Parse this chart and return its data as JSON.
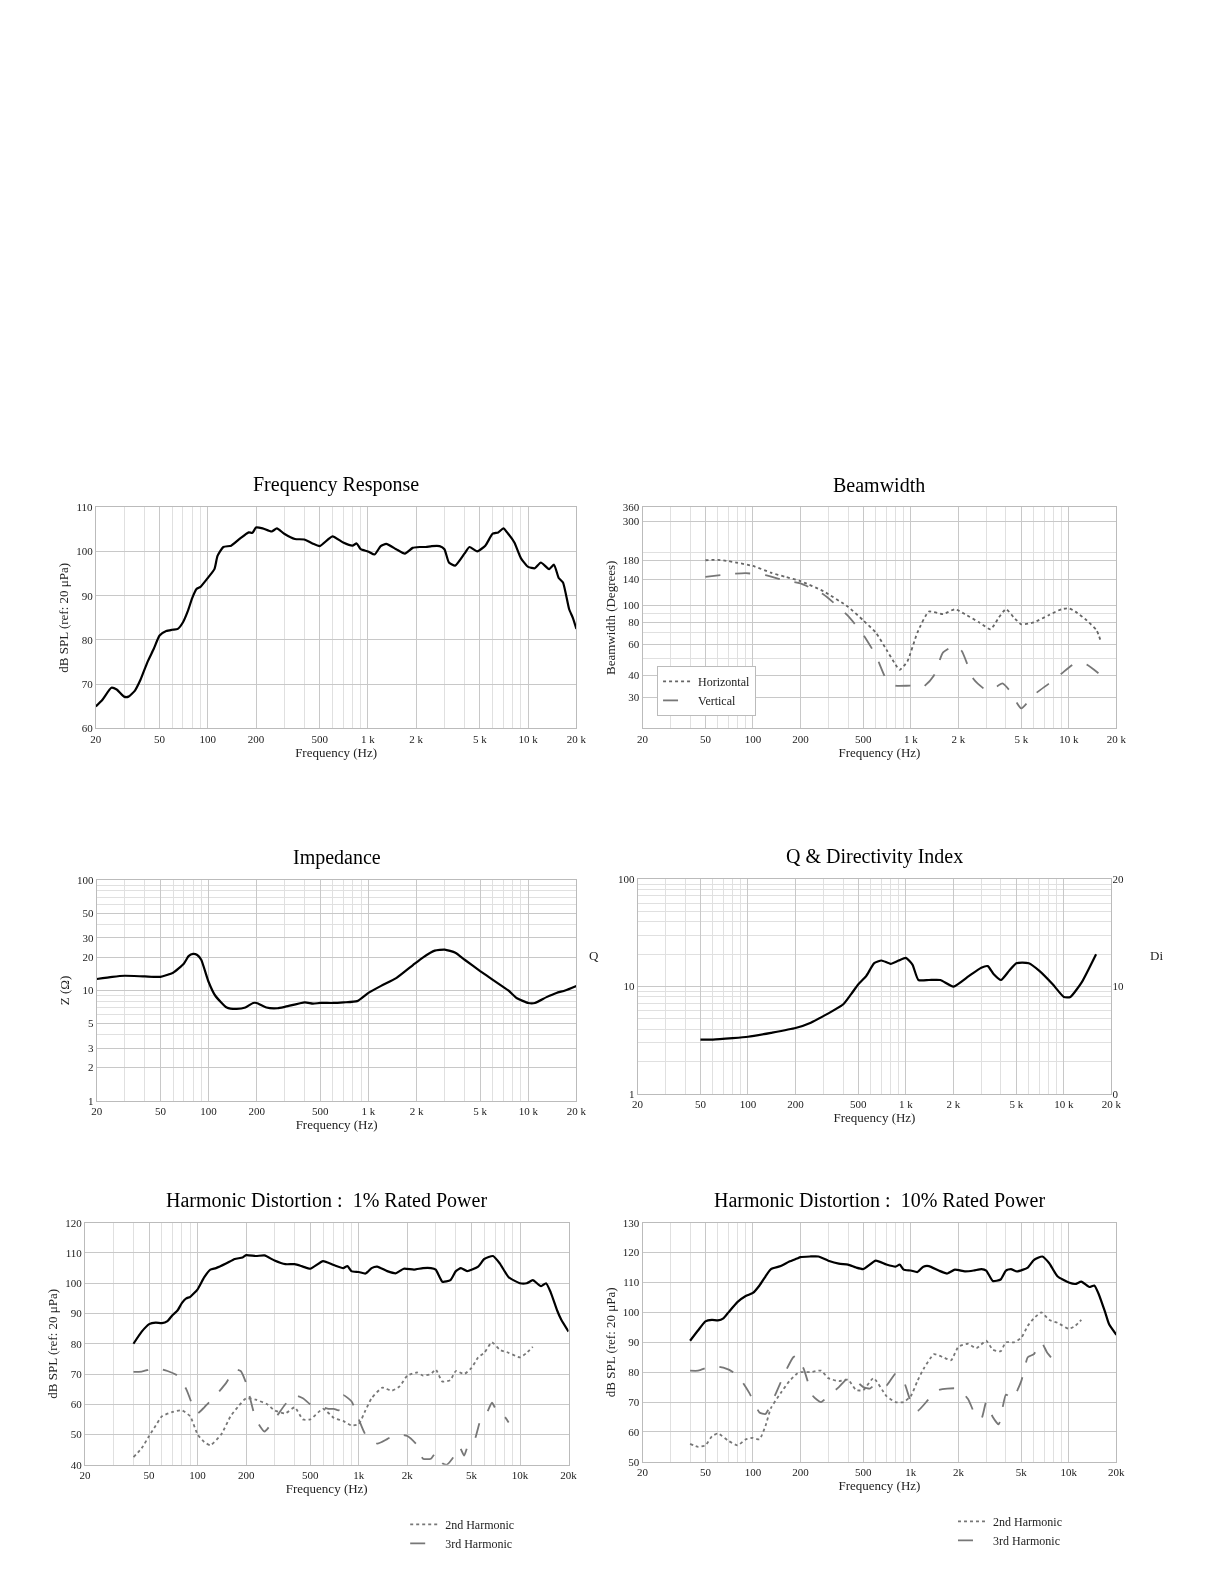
{
  "chart_data": [
    {
      "type": "line",
      "title": "Frequency Response",
      "xlabel": "Frequency (Hz)",
      "ylabel": "dB SPL (ref: 20 μPa)",
      "log": "x",
      "grid": true,
      "xlim": [
        20,
        20000
      ],
      "ylim": [
        60,
        110
      ],
      "xticks": [
        20,
        50,
        100,
        200,
        500,
        {
          "value": 1000,
          "label": "1 k"
        },
        {
          "value": 2000,
          "label": "2 k"
        },
        {
          "value": 5000,
          "label": "5 k"
        },
        {
          "value": 10000,
          "label": "10 k"
        },
        {
          "value": 20000,
          "label": "20 k"
        }
      ],
      "yticks": [
        60,
        70,
        80,
        90,
        100,
        110
      ],
      "series": [
        {
          "color": "#000000",
          "line_style": "solid",
          "x": [
            20,
            22,
            25,
            27,
            30,
            32,
            35,
            38,
            42,
            46,
            50,
            55,
            60,
            65,
            70,
            75,
            80,
            85,
            90,
            100,
            110,
            115,
            125,
            140,
            160,
            180,
            190,
            200,
            220,
            250,
            270,
            300,
            350,
            400,
            450,
            500,
            600,
            700,
            800,
            850,
            900,
            1000,
            1100,
            1200,
            1300,
            1500,
            1700,
            1900,
            2100,
            2300,
            2500,
            2800,
            3000,
            3200,
            3500,
            4000,
            4300,
            4800,
            5400,
            6000,
            6500,
            7000,
            7500,
            8200,
            9000,
            10000,
            11000,
            12000,
            13500,
            14500,
            15500,
            16500,
            18000,
            19000,
            20000
          ],
          "values": [
            65,
            66.5,
            69.2,
            68.8,
            67.2,
            67.2,
            68.5,
            71,
            75,
            78,
            81,
            82,
            82.3,
            82.5,
            84,
            86.5,
            89.5,
            91.5,
            92,
            94,
            96,
            99,
            101,
            101.3,
            103,
            104.3,
            104.2,
            105.4,
            105.2,
            104.5,
            105.2,
            104,
            102.8,
            102.7,
            101.8,
            101.2,
            103.4,
            102,
            101.3,
            101.8,
            100.5,
            100,
            99.3,
            101.2,
            101.7,
            100.5,
            99.5,
            100.8,
            101,
            101,
            101.2,
            101.2,
            100.5,
            97.5,
            96.8,
            99.5,
            101,
            100,
            101.3,
            104,
            104.3,
            105.2,
            104,
            102,
            98.5,
            96.5,
            96.2,
            97.5,
            96,
            97,
            94,
            93,
            87,
            85,
            82.5
          ]
        }
      ]
    },
    {
      "type": "line",
      "title": "Beamwidth",
      "xlabel": "Frequency (Hz)",
      "ylabel": "Beamwidth (Degrees)",
      "log": "xy",
      "grid": true,
      "legend": "bottom left",
      "xlim": [
        20,
        20000
      ],
      "ylim": [
        20,
        360
      ],
      "xticks": [
        20,
        50,
        100,
        200,
        500,
        {
          "value": 1000,
          "label": "1 k"
        },
        {
          "value": 2000,
          "label": "2 k"
        },
        {
          "value": 5000,
          "label": "5 k"
        },
        {
          "value": 10000,
          "label": "10 k"
        },
        {
          "value": 20000,
          "label": "20 k"
        }
      ],
      "yticks": [
        30,
        40,
        60,
        80,
        100,
        140,
        180,
        300,
        360
      ],
      "series": [
        {
          "name": "Horizontal",
          "color": "#666666",
          "line_style": "dotted",
          "x": [
            50,
            60,
            70,
            80,
            100,
            130,
            160,
            200,
            280,
            400,
            500,
            600,
            700,
            800,
            850,
            950,
            1100,
            1300,
            1600,
            1900,
            2200,
            2700,
            3200,
            3600,
            4000,
            4500,
            5000,
            6000,
            7500,
            9000,
            10000,
            11000,
            13000,
            15000,
            16000
          ],
          "values": [
            180,
            181,
            178,
            174,
            167,
            153,
            145,
            137,
            120,
            98,
            82,
            70,
            56,
            46,
            43,
            48,
            70,
            92,
            89,
            95,
            89,
            80,
            73,
            85,
            95,
            85,
            78,
            80,
            88,
            95,
            96,
            92,
            82,
            72,
            62
          ]
        },
        {
          "name": "Vertical",
          "color": "#777777",
          "line_style": "dashed",
          "x": [
            50,
            70,
            90,
            120,
            150,
            200,
            280,
            400,
            500,
            600,
            700,
            800,
            1000,
            1200,
            1400,
            1600,
            1900,
            2100,
            2500,
            3000,
            3300,
            3800,
            4200,
            5000,
            6000,
            7500,
            9000,
            11000,
            13000,
            16000
          ],
          "values": [
            145,
            150,
            152,
            148,
            140,
            133,
            115,
            87,
            68,
            52,
            38,
            35,
            35,
            34.5,
            40,
            54,
            59,
            55,
            38,
            33,
            33.5,
            36,
            33,
            26,
            31,
            36,
            41,
            47,
            46,
            40
          ]
        }
      ]
    },
    {
      "type": "line",
      "title": "Impedance",
      "xlabel": "Frequency (Hz)",
      "ylabel": "Z (Ω)",
      "log": "xy",
      "grid": true,
      "xlim": [
        20,
        20000
      ],
      "ylim": [
        1,
        100
      ],
      "xticks": [
        20,
        50,
        100,
        200,
        500,
        {
          "value": 1000,
          "label": "1 k"
        },
        {
          "value": 2000,
          "label": "2 k"
        },
        {
          "value": 5000,
          "label": "5 k"
        },
        {
          "value": 10000,
          "label": "10 k"
        },
        {
          "value": 20000,
          "label": "20 k"
        }
      ],
      "yticks": [
        1,
        2,
        3,
        5,
        10,
        20,
        30,
        50,
        100
      ],
      "series": [
        {
          "color": "#000000",
          "line_style": "solid",
          "x": [
            20,
            25,
            30,
            40,
            50,
            60,
            70,
            75,
            80,
            85,
            90,
            100,
            110,
            130,
            150,
            170,
            190,
            200,
            230,
            270,
            300,
            400,
            450,
            500,
            600,
            700,
            850,
            1000,
            1200,
            1500,
            1900,
            2200,
            2600,
            3000,
            3500,
            4000,
            5000,
            6000,
            7500,
            8500,
            10000,
            11000,
            13000,
            15000,
            17000,
            20000
          ],
          "values": [
            12.7,
            13.3,
            13.6,
            13.4,
            13.3,
            14.5,
            17.5,
            20.5,
            21.5,
            21,
            19,
            12,
            9,
            7,
            6.8,
            7,
            7.7,
            7.7,
            7,
            6.9,
            7.1,
            7.8,
            7.6,
            7.7,
            7.7,
            7.8,
            8,
            9.5,
            11,
            13,
            17,
            20,
            23,
            23.5,
            22,
            19,
            15,
            12.5,
            10,
            8.5,
            7.7,
            7.7,
            8.7,
            9.5,
            10,
            11
          ]
        }
      ]
    },
    {
      "type": "line",
      "title": "Q & Directivity Index",
      "xlabel": "Frequency (Hz)",
      "ylabel": "Q",
      "y2label": "Di",
      "log": "xy",
      "grid": true,
      "xlim": [
        20,
        20000
      ],
      "ylim": [
        1,
        100
      ],
      "y2lim": [
        0,
        20
      ],
      "xticks": [
        20,
        50,
        100,
        200,
        500,
        {
          "value": 1000,
          "label": "1 k"
        },
        {
          "value": 2000,
          "label": "2 k"
        },
        {
          "value": 5000,
          "label": "5 k"
        },
        {
          "value": 10000,
          "label": "10 k"
        },
        {
          "value": 20000,
          "label": "20 k"
        }
      ],
      "yticks": [
        1,
        10,
        100
      ],
      "y2ticks": [
        0,
        10,
        20
      ],
      "series": [
        {
          "color": "#000000",
          "line_style": "solid",
          "x": [
            50,
            60,
            80,
            100,
            140,
            200,
            250,
            300,
            400,
            450,
            500,
            560,
            630,
            700,
            800,
            900,
            1000,
            1100,
            1200,
            1400,
            1650,
            2000,
            2500,
            3000,
            3300,
            3600,
            4000,
            4500,
            5000,
            6000,
            7000,
            8500,
            10000,
            11000,
            13000,
            16000
          ],
          "values": [
            3.2,
            3.2,
            3.3,
            3.4,
            3.7,
            4.1,
            4.6,
            5.3,
            6.8,
            8.5,
            10.5,
            12.5,
            16.5,
            17.5,
            16.3,
            17.5,
            18.5,
            16,
            11.5,
            11.5,
            11.5,
            10,
            12.5,
            15,
            15.5,
            13,
            11.5,
            14,
            16.5,
            16.5,
            14,
            10.5,
            8,
            8,
            11,
            20
          ]
        }
      ]
    },
    {
      "type": "line",
      "title": "Harmonic Distortion :  1% Rated Power",
      "xlabel": "Frequency (Hz)",
      "ylabel": "dB SPL (ref: 20 μPa)",
      "log": "x",
      "grid": true,
      "legend": "bottom right",
      "xlim": [
        20,
        20000
      ],
      "ylim": [
        40,
        120
      ],
      "xticks": [
        20,
        50,
        100,
        200,
        500,
        {
          "value": 1000,
          "label": "1k"
        },
        {
          "value": 2000,
          "label": "2k"
        },
        {
          "value": 5000,
          "label": "5k"
        },
        {
          "value": 10000,
          "label": "10k"
        },
        {
          "value": 20000,
          "label": "20k"
        }
      ],
      "yticks": [
        40,
        50,
        60,
        70,
        80,
        90,
        100,
        110,
        120
      ],
      "series": [
        {
          "color": "#000000",
          "line_style": "solid",
          "x": [
            40,
            45,
            50,
            55,
            60,
            65,
            70,
            75,
            80,
            85,
            90,
            100,
            110,
            120,
            130,
            150,
            170,
            190,
            200,
            230,
            260,
            300,
            350,
            400,
            450,
            500,
            600,
            700,
            800,
            850,
            900,
            1000,
            1100,
            1200,
            1300,
            1500,
            1700,
            1900,
            2200,
            2500,
            2800,
            3000,
            3300,
            3700,
            4000,
            4300,
            4700,
            5500,
            6000,
            6800,
            7500,
            8500,
            10000,
            11000,
            12000,
            13500,
            14500,
            15500,
            17000,
            18000,
            20000
          ],
          "values": [
            80,
            84,
            86.5,
            87,
            86.8,
            87.5,
            89.5,
            91,
            93.5,
            95,
            95.5,
            98,
            102,
            104.5,
            105,
            106.5,
            108,
            108.5,
            109.3,
            109,
            109.2,
            107.5,
            106.3,
            106.3,
            105.5,
            104.8,
            107.3,
            106,
            105,
            105.7,
            104,
            103.7,
            103.2,
            105,
            105.5,
            104,
            103.3,
            104.8,
            104.5,
            105,
            105,
            104.5,
            100.5,
            101,
            104,
            105,
            104,
            105.5,
            108,
            109,
            106.5,
            102,
            100,
            100,
            101,
            99,
            100,
            97,
            91,
            88,
            84
          ]
        },
        {
          "name": "2nd Harmonic",
          "color": "#777777",
          "line_style": "dotted",
          "x": [
            40,
            45,
            50,
            55,
            60,
            70,
            80,
            90,
            100,
            110,
            120,
            140,
            160,
            180,
            200,
            230,
            270,
            300,
            350,
            400,
            450,
            500,
            600,
            700,
            800,
            900,
            1000,
            1100,
            1200,
            1400,
            1600,
            1800,
            2000,
            2300,
            2500,
            2800,
            3000,
            3300,
            3700,
            4000,
            4500,
            5000,
            5500,
            6000,
            6700,
            7500,
            8500,
            10000,
            11000,
            12000
          ],
          "values": [
            42.5,
            45.5,
            49.5,
            53,
            56,
            57.5,
            58,
            56,
            50,
            47.5,
            46.5,
            50,
            56,
            59.5,
            62,
            61.5,
            60,
            58,
            57,
            59,
            55,
            55,
            58.5,
            55.5,
            54.5,
            53,
            53.5,
            58,
            62,
            65.5,
            64.5,
            66,
            69.5,
            70.5,
            69.5,
            70,
            71.5,
            67.5,
            68,
            71,
            70,
            72,
            75.5,
            77,
            80.5,
            78,
            77,
            75.5,
            77,
            79
          ]
        },
        {
          "name": "3rd Harmonic",
          "color": "#777777",
          "line_style": "dashed",
          "x": [
            40,
            45,
            55,
            65,
            75,
            85,
            95,
            100,
            110,
            130,
            150,
            170,
            185,
            200,
            230,
            260,
            300,
            350,
            400,
            450,
            500,
            550,
            600,
            650,
            700,
            750,
            800,
            900,
            1000,
            1100,
            1300,
            1500,
            1700,
            2000,
            2300,
            2500,
            2800,
            3000,
            3300,
            3500,
            3800,
            4200,
            4500,
            4800,
            5200,
            5700,
            6200,
            6700,
            7300,
            8000,
            8500
          ],
          "values": [
            70.7,
            70.8,
            72,
            71,
            69.5,
            65,
            58.5,
            57,
            59,
            63,
            67,
            71.5,
            71,
            67,
            55,
            51,
            55,
            60,
            63,
            62,
            60,
            59.5,
            59,
            58.5,
            58.5,
            58,
            63,
            61,
            55,
            50,
            47,
            48.5,
            50,
            49.5,
            46.5,
            42,
            42,
            44,
            40.5,
            40,
            42,
            46,
            43,
            47,
            48,
            55,
            57,
            60.5,
            57,
            56,
            54
          ]
        }
      ]
    },
    {
      "type": "line",
      "title": "Harmonic Distortion :  10% Rated Power",
      "xlabel": "Frequency (Hz)",
      "ylabel": "dB SPL (ref: 20 μPa)",
      "log": "x",
      "grid": true,
      "legend": "bottom right",
      "xlim": [
        20,
        20000
      ],
      "ylim": [
        50,
        130
      ],
      "xticks": [
        20,
        50,
        100,
        200,
        500,
        {
          "value": 1000,
          "label": "1k"
        },
        {
          "value": 2000,
          "label": "2k"
        },
        {
          "value": 5000,
          "label": "5k"
        },
        {
          "value": 10000,
          "label": "10k"
        },
        {
          "value": 20000,
          "label": "20k"
        }
      ],
      "yticks": [
        50,
        60,
        70,
        80,
        90,
        100,
        110,
        120,
        130
      ],
      "series": [
        {
          "color": "#000000",
          "line_style": "solid",
          "x": [
            40,
            45,
            50,
            55,
            60,
            65,
            70,
            80,
            90,
            100,
            110,
            120,
            130,
            150,
            170,
            190,
            200,
            230,
            260,
            300,
            350,
            400,
            450,
            500,
            600,
            700,
            800,
            850,
            900,
            1000,
            1100,
            1200,
            1300,
            1500,
            1700,
            1900,
            2200,
            2500,
            2800,
            3000,
            3300,
            3700,
            4000,
            4300,
            4700,
            5500,
            6000,
            6800,
            7500,
            8500,
            10000,
            11000,
            12000,
            13500,
            14500,
            15500,
            17000,
            18000,
            20000
          ],
          "values": [
            90.5,
            94,
            97,
            97.5,
            97.3,
            98,
            100,
            103.5,
            105.5,
            106.5,
            109,
            112,
            114.5,
            115.5,
            117,
            118,
            118.5,
            118.7,
            118.7,
            117.3,
            116.3,
            116,
            115,
            114.5,
            117.3,
            116,
            115.3,
            116,
            114.3,
            114,
            113.5,
            115.3,
            115.5,
            114,
            113,
            114.3,
            113.7,
            114,
            114.5,
            114,
            110.5,
            111,
            114,
            114.5,
            113.7,
            115,
            117.5,
            118.7,
            116.5,
            112,
            110,
            109.5,
            110.3,
            108.5,
            109,
            106,
            100,
            96,
            92.5
          ]
        },
        {
          "name": "2nd Harmonic",
          "color": "#777777",
          "line_style": "dotted",
          "x": [
            40,
            45,
            50,
            55,
            60,
            70,
            80,
            90,
            100,
            110,
            120,
            130,
            150,
            170,
            190,
            200,
            230,
            270,
            300,
            350,
            400,
            450,
            500,
            580,
            700,
            800,
            900,
            1000,
            1100,
            1200,
            1400,
            1600,
            1800,
            2000,
            2300,
            2600,
            3000,
            3300,
            3700,
            4000,
            4500,
            5000,
            5500,
            6000,
            6700,
            7500,
            8500,
            10000,
            11000,
            12000
          ],
          "values": [
            56,
            55,
            55.5,
            58.5,
            59.5,
            57,
            55.5,
            57.5,
            58,
            57.5,
            62,
            68,
            73,
            77,
            79.5,
            80,
            80,
            80.5,
            78,
            77,
            77.5,
            74,
            74,
            78,
            72,
            70,
            70,
            72,
            77,
            81,
            86,
            85,
            84,
            88.5,
            89.5,
            88,
            90.5,
            87.5,
            87,
            90,
            90,
            91.5,
            95.5,
            98,
            100,
            97.5,
            96.5,
            94.5,
            95.5,
            97.5
          ]
        },
        {
          "name": "3rd Harmonic",
          "color": "#777777",
          "line_style": "dashed",
          "x": [
            40,
            45,
            55,
            65,
            75,
            85,
            95,
            110,
            120,
            140,
            160,
            180,
            190,
            210,
            240,
            270,
            300,
            350,
            400,
            450,
            500,
            550,
            600,
            700,
            800,
            900,
            1000,
            1100,
            1300,
            1500,
            1700,
            2000,
            2300,
            2600,
            2800,
            3000,
            3300,
            3600,
            4000,
            4400,
            5000,
            5500,
            6000,
            6700,
            7300,
            8000
          ],
          "values": [
            80.5,
            80.5,
            82,
            81.5,
            80,
            77,
            73,
            66.5,
            66,
            73,
            80,
            85,
            85.5,
            81,
            72,
            70,
            72,
            75,
            78,
            77,
            75,
            74.5,
            76,
            75.5,
            79.5,
            77,
            70,
            67,
            71,
            74,
            74.5,
            74.5,
            71,
            65,
            64.5,
            70,
            65,
            62.5,
            72.5,
            71,
            77,
            85,
            86,
            90,
            86.5,
            84
          ]
        }
      ]
    }
  ]
}
